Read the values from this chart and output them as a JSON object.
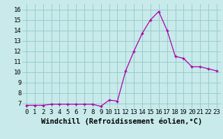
{
  "x": [
    0,
    1,
    2,
    3,
    4,
    5,
    6,
    7,
    8,
    9,
    10,
    11,
    12,
    13,
    14,
    15,
    16,
    17,
    18,
    19,
    20,
    21,
    22,
    23
  ],
  "y": [
    6.8,
    6.8,
    6.8,
    6.9,
    6.9,
    6.9,
    6.9,
    6.9,
    6.9,
    6.7,
    7.3,
    7.2,
    10.1,
    12.0,
    13.7,
    15.0,
    15.8,
    14.0,
    11.5,
    11.3,
    10.5,
    10.5,
    10.3,
    10.1
  ],
  "xlabel": "Windchill (Refroidissement éolien,°C)",
  "xlim": [
    -0.5,
    23.5
  ],
  "ylim": [
    6.5,
    16.5
  ],
  "yticks": [
    7,
    8,
    9,
    10,
    11,
    12,
    13,
    14,
    15,
    16
  ],
  "xticks": [
    0,
    1,
    2,
    3,
    4,
    5,
    6,
    7,
    8,
    9,
    10,
    11,
    12,
    13,
    14,
    15,
    16,
    17,
    18,
    19,
    20,
    21,
    22,
    23
  ],
  "line_color": "#aa00aa",
  "marker_color": "#aa00aa",
  "bg_color": "#c8eaea",
  "grid_color": "#99cccc",
  "tick_fontsize": 6.5,
  "xlabel_fontsize": 7.5
}
